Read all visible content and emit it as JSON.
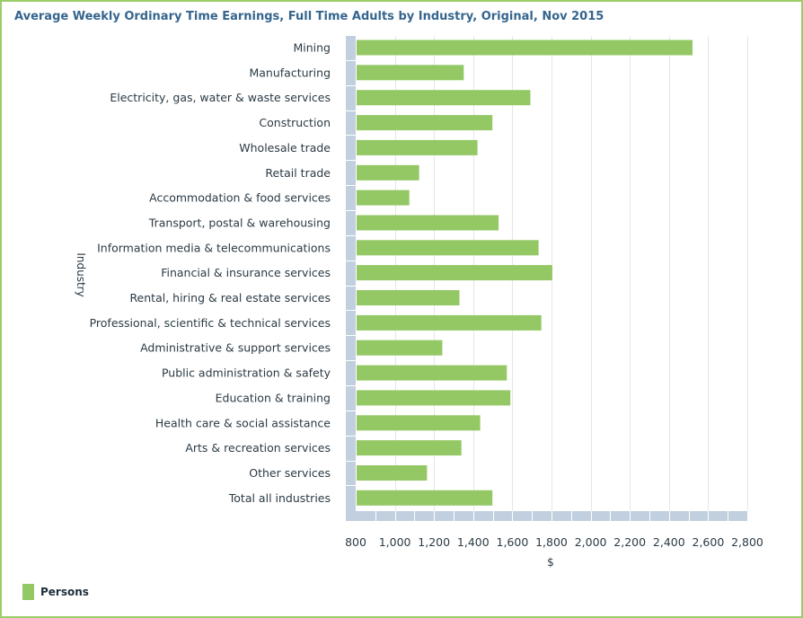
{
  "chart_data": {
    "type": "bar",
    "orientation": "horizontal",
    "title": "Average Weekly Ordinary Time Earnings, Full Time Adults by Industry, Original, Nov 2015",
    "xlabel": "$",
    "ylabel": "Industry",
    "xlim": [
      800,
      2800
    ],
    "x_ticks": [
      800,
      1000,
      1200,
      1400,
      1600,
      1800,
      2000,
      2200,
      2400,
      2600,
      2800
    ],
    "x_tick_labels": [
      "800",
      "1,000",
      "1,200",
      "1,400",
      "1,600",
      "1,800",
      "2,000",
      "2,200",
      "2,400",
      "2,600",
      "2,800"
    ],
    "grid": true,
    "legend_position": "bottom-left",
    "categories": [
      "Mining",
      "Manufacturing",
      "Electricity, gas, water & waste services",
      "Construction",
      "Wholesale trade",
      "Retail trade",
      "Accommodation & food services",
      "Transport, postal & warehousing",
      "Information media & telecommunications",
      "Financial & insurance services",
      "Rental, hiring & real estate services",
      "Professional, scientific & technical services",
      "Administrative & support services",
      "Public administration & safety",
      "Education & training",
      "Health care & social assistance",
      "Arts & recreation services",
      "Other services",
      "Total all industries"
    ],
    "series": [
      {
        "name": "Persons",
        "color": "#93c864",
        "values": [
          2520,
          1352,
          1692,
          1498,
          1422,
          1124,
          1074,
          1530,
          1734,
          1804,
          1330,
          1748,
          1242,
          1572,
          1590,
          1436,
          1340,
          1164,
          1498
        ]
      }
    ]
  },
  "colors": {
    "bar": "#93c864",
    "axis_band": "#c2cfde",
    "grid": "#e6e6e6",
    "title": "#35658e",
    "text": "#2b3a44",
    "frame": "#9ccd6b"
  }
}
